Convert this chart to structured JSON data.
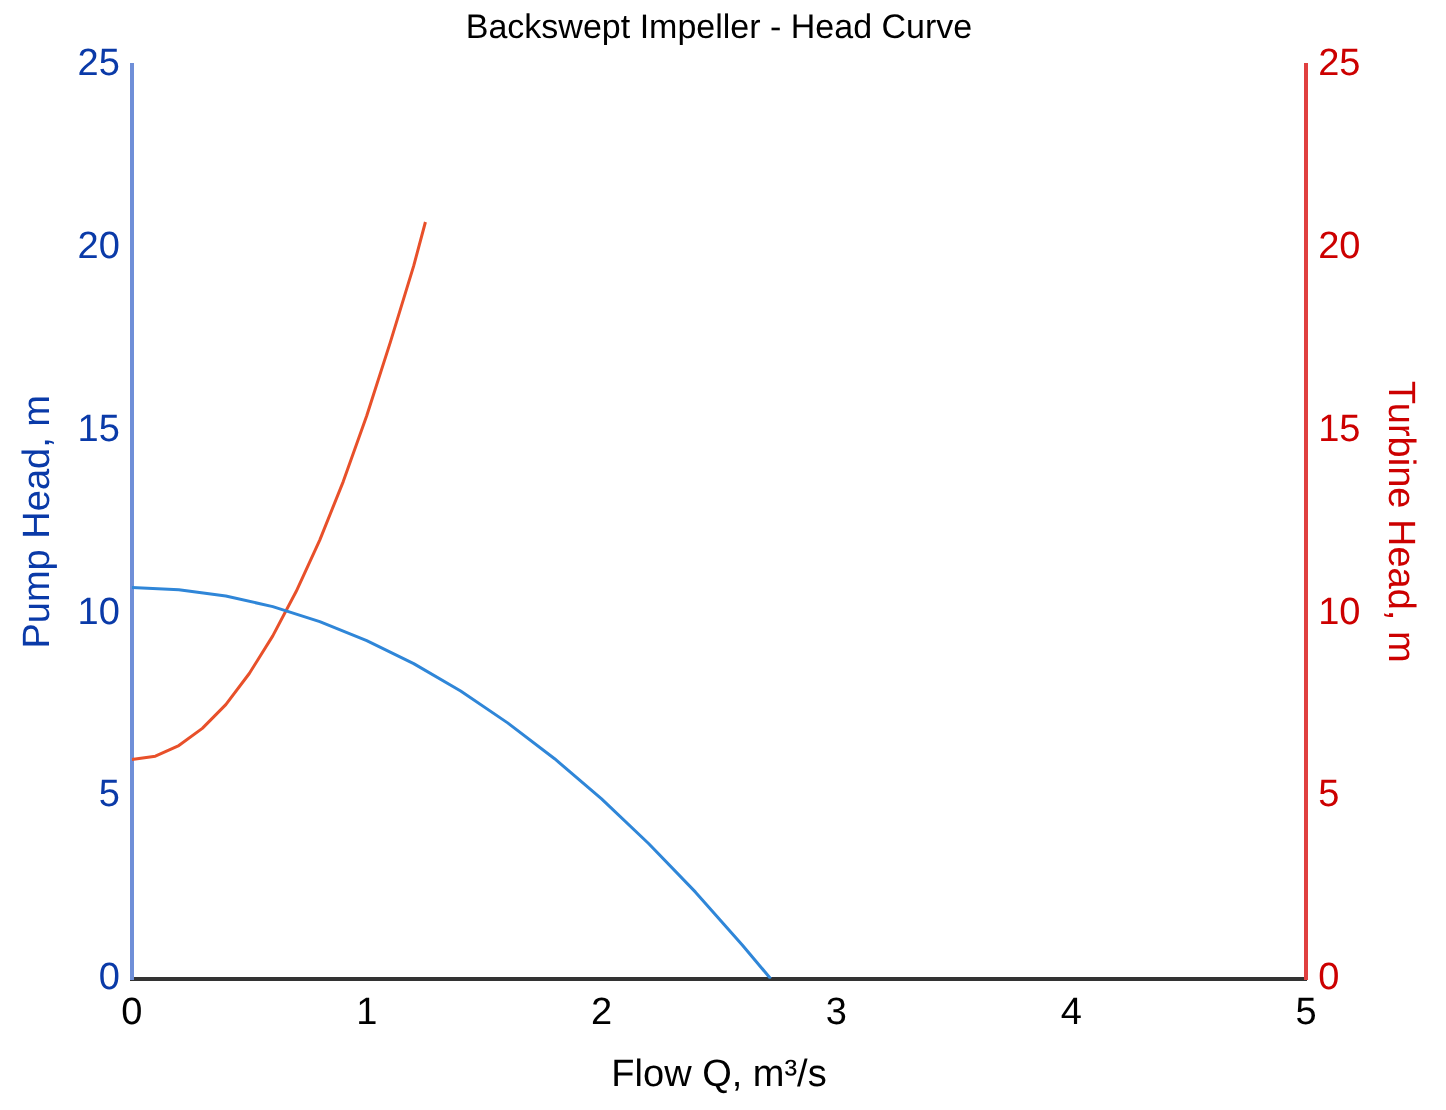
{
  "chart_data": {
    "type": "line",
    "title": "Backswept Impeller - Head Curve",
    "xlabel": "Flow Q, m³/s",
    "ylabel": "Pump Head, m",
    "y2label": "Turbine Head, m",
    "xlim": [
      0,
      5
    ],
    "xticks": [
      0,
      1,
      2,
      3,
      4,
      5
    ],
    "ylim": [
      0,
      25
    ],
    "yticks": [
      0,
      5,
      10,
      15,
      20,
      25
    ],
    "y2lim": [
      0,
      25
    ],
    "y2ticks": [
      0,
      5,
      10,
      15,
      20,
      25
    ],
    "grid": false,
    "legend": false,
    "marker": "none",
    "line_style": "solid",
    "series": [
      {
        "color": "#2f86d8",
        "x": [
          0,
          0.2,
          0.4,
          0.6,
          0.8,
          1.0,
          1.2,
          1.4,
          1.6,
          1.8,
          2.0,
          2.2,
          2.4,
          2.6,
          2.72
        ],
        "values": [
          10.7,
          10.64,
          10.47,
          10.18,
          9.77,
          9.25,
          8.62,
          7.87,
          7.0,
          6.02,
          4.92,
          3.7,
          2.37,
          0.92,
          0
        ]
      },
      {
        "color": "#e8502a",
        "axis": "y2",
        "x": [
          0,
          0.1,
          0.2,
          0.3,
          0.4,
          0.5,
          0.6,
          0.7,
          0.8,
          0.9,
          1.0,
          1.1,
          1.2,
          1.25
        ],
        "values": [
          6,
          6.09,
          6.38,
          6.85,
          7.5,
          8.35,
          9.38,
          10.6,
          12.0,
          13.6,
          15.4,
          17.4,
          19.5,
          20.7
        ]
      }
    ]
  }
}
